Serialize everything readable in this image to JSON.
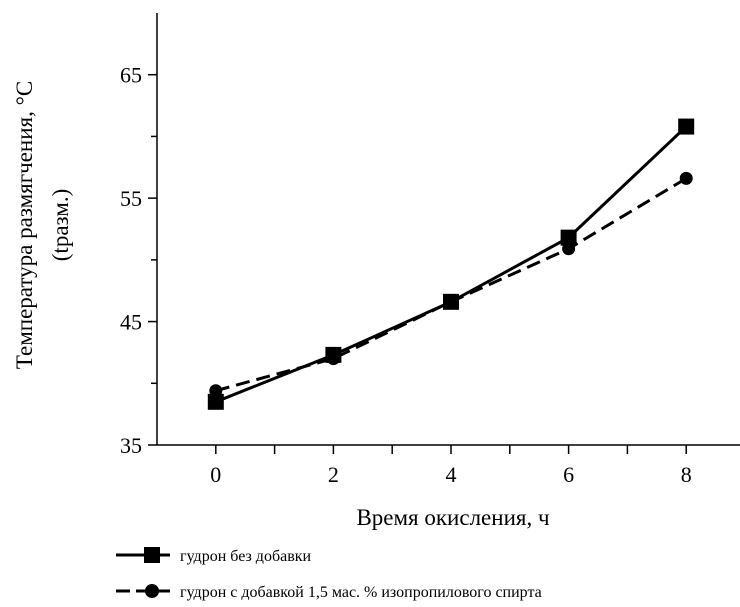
{
  "chart_data": {
    "type": "line",
    "xlabel": "Время окисления, ч",
    "ylabel_line1": "Температура размягчения, °C",
    "ylabel_line2": "(tразм.)",
    "x": [
      0,
      2,
      4,
      6,
      8
    ],
    "xlim": [
      -1,
      9
    ],
    "ylim": [
      35,
      70
    ],
    "x_ticks": [
      0,
      2,
      4,
      6,
      8
    ],
    "y_ticks": [
      35,
      45,
      55,
      65
    ],
    "grid": false,
    "legend_position": "bottom-left",
    "series": [
      {
        "name": "гудрон без добавки",
        "values": [
          38.5,
          42.3,
          46.6,
          51.8,
          60.8
        ],
        "marker": "square",
        "line_style": "solid",
        "color": "#000000"
      },
      {
        "name": "гудрон с добавкой 1,5 мас. % изопропилового спирта",
        "values": [
          39.4,
          42.0,
          46.6,
          50.9,
          56.6
        ],
        "marker": "circle",
        "line_style": "dashed",
        "color": "#000000"
      }
    ]
  }
}
